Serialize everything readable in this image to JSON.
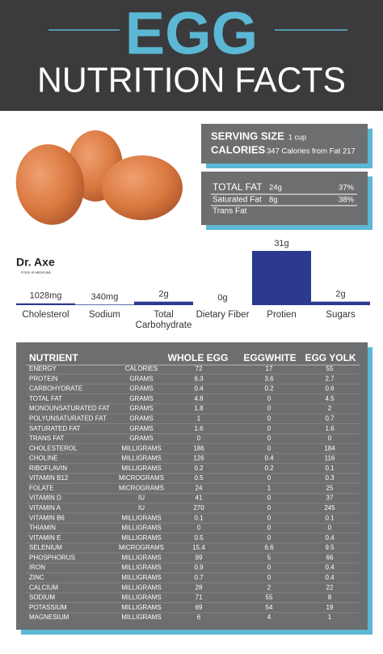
{
  "header": {
    "title": "EGG",
    "subtitle": "NUTRITION FACTS"
  },
  "serving": {
    "size_label": "SERVING SIZE",
    "size_value": "1 cup",
    "calories_label": "CALORIES",
    "calories_value": "347 Calories from Fat 217"
  },
  "fat": {
    "rows": [
      [
        "TOTAL FAT",
        "24g",
        "37%"
      ],
      [
        "Saturated Fat",
        "8g",
        "38%"
      ],
      [
        "Trans Fat",
        "",
        ""
      ]
    ]
  },
  "logo": {
    "name": "Dr. Axe",
    "tagline": "FOOD IS MEDICINE"
  },
  "chart_data": {
    "type": "bar",
    "categories": [
      "Cholesterol",
      "Sodium",
      "Total Carbohydrate",
      "Dietary Fiber",
      "Protien",
      "Sugars"
    ],
    "values": [
      1.028,
      0.34,
      2,
      0,
      31,
      2
    ],
    "value_labels": [
      "1028mg",
      "340mg",
      "2g",
      "0g",
      "31g",
      "2g"
    ],
    "color": "#2b3990"
  },
  "table": {
    "header": [
      "NUTRIENT",
      "WHOLE EGG",
      "EGGWHITE",
      "EGG YOLK"
    ],
    "rows": [
      [
        "ENERGY",
        "CALORIES",
        72,
        17,
        55
      ],
      [
        "PROTEIN",
        "GRAMS",
        6.3,
        3.6,
        2.7
      ],
      [
        "CARBOHYDRATE",
        "GRAMS",
        0.4,
        0.2,
        0.6
      ],
      [
        "TOTAL FAT",
        "GRAMS",
        4.8,
        0,
        4.5
      ],
      [
        "MONOUNSATURATED FAT",
        "GRAMS",
        1.8,
        0,
        2
      ],
      [
        "POLYUNSATURATED FAT",
        "GRAMS",
        1,
        0,
        0.7
      ],
      [
        "SATURATED FAT",
        "GRAMS",
        1.6,
        0,
        1.6
      ],
      [
        "TRANS FAT",
        "GRAMS",
        0,
        0,
        0
      ],
      [
        "CHOLESTEROL",
        "MILLIGRAMS",
        186,
        0,
        184
      ],
      [
        "CHOLINE",
        "MILLIGRAMS",
        126,
        0.4,
        116
      ],
      [
        "RIBOFLAVIN",
        "MILLIGRAMS",
        0.2,
        0.2,
        0.1
      ],
      [
        "VITAMIN B12",
        "MICROGRAMS",
        0.5,
        0,
        0.3
      ],
      [
        "FOLATE",
        "MICROGRAMS",
        24,
        1,
        25
      ],
      [
        "VITAMIN D",
        "IU",
        41,
        0,
        37
      ],
      [
        "VITAMIN A",
        "IU",
        270,
        0,
        245
      ],
      [
        "VITAMIN B6",
        "MILLIGRAMS",
        0.1,
        0,
        0.1
      ],
      [
        "THIAMIN",
        "MILLIGRAMS",
        0,
        0,
        0
      ],
      [
        "VITAMIN E",
        "MILLIGRAMS",
        0.5,
        0,
        0.4
      ],
      [
        "SELENIUM",
        "MICROGRAMS",
        15.4,
        6.6,
        9.5
      ],
      [
        "PHOSPHORUS",
        "MILLIGRAMS",
        99,
        5,
        66
      ],
      [
        "IRON",
        "MILLIGRAMS",
        0.9,
        0,
        0.4
      ],
      [
        "ZINC",
        "MILLIGRAMS",
        0.7,
        0,
        0.4
      ],
      [
        "CALCIUM",
        "MILLIGRAMS",
        28,
        2,
        22
      ],
      [
        "SODIUM",
        "MILLIGRAMS",
        71,
        55,
        8
      ],
      [
        "POTASSIUM",
        "MILLIGRAMS",
        69,
        54,
        19
      ],
      [
        "MAGNESIUM",
        "MILLIGRAMS",
        6,
        4,
        1
      ]
    ]
  }
}
